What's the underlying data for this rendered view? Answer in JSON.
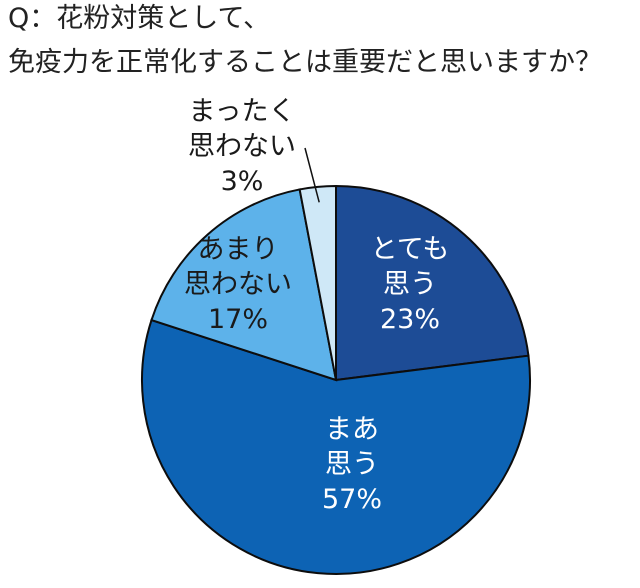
{
  "title": {
    "line1": "Q：花粉対策として、",
    "line2": "免疫力を正常化することは重要だと思いますか？"
  },
  "chart_data": {
    "type": "pie",
    "title": "Q：花粉対策として、免疫力を正常化することは重要だと思いますか？",
    "slices": [
      {
        "label_lines": [
          "とても",
          "思う"
        ],
        "value_label": "23%",
        "value": 23,
        "color": "#1d4c96",
        "text_color": "#ffffff"
      },
      {
        "label_lines": [
          "まあ",
          "思う"
        ],
        "value_label": "57%",
        "value": 57,
        "color": "#0d63b4",
        "text_color": "#ffffff"
      },
      {
        "label_lines": [
          "あまり",
          "思わない"
        ],
        "value_label": "17%",
        "value": 17,
        "color": "#5db2ea",
        "text_color": "#1a1a1a"
      },
      {
        "label_lines": [
          "まったく",
          "思わない"
        ],
        "value_label": "3%",
        "value": 3,
        "color": "#cfe8f7",
        "text_color": "#1a1a1a"
      }
    ],
    "start": "12 o'clock",
    "direction": "clockwise",
    "edge_color": "#0d0d0d"
  }
}
